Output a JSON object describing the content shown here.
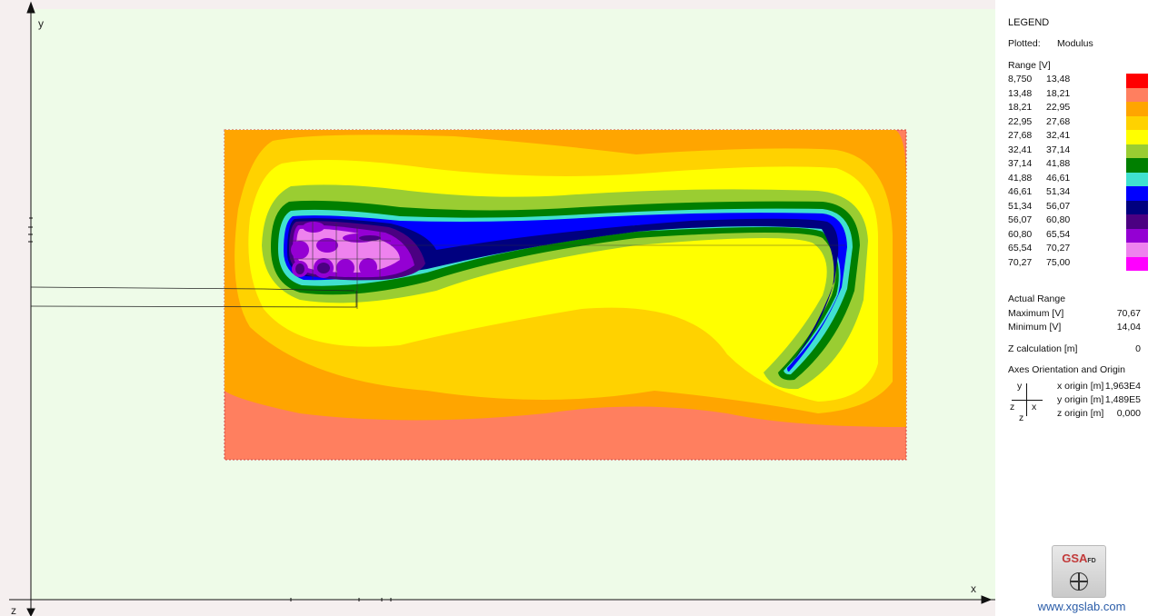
{
  "plot": {
    "axis_y_label": "y",
    "axis_x_label": "x",
    "axis_z_label": "z"
  },
  "legend": {
    "title": "LEGEND",
    "plotted_label": "Plotted:",
    "plotted_value": "Modulus",
    "range_header": "Range [V]",
    "ranges": [
      {
        "lo": "8,750",
        "hi": "13,48",
        "color": "#ff0000"
      },
      {
        "lo": "13,48",
        "hi": "18,21",
        "color": "#ff7f5f"
      },
      {
        "lo": "18,21",
        "hi": "22,95",
        "color": "#ffa500"
      },
      {
        "lo": "22,95",
        "hi": "27,68",
        "color": "#ffd200"
      },
      {
        "lo": "27,68",
        "hi": "32,41",
        "color": "#ffff00"
      },
      {
        "lo": "32,41",
        "hi": "37,14",
        "color": "#9acd32"
      },
      {
        "lo": "37,14",
        "hi": "41,88",
        "color": "#007f00"
      },
      {
        "lo": "41,88",
        "hi": "46,61",
        "color": "#40e0d0"
      },
      {
        "lo": "46,61",
        "hi": "51,34",
        "color": "#0000ff"
      },
      {
        "lo": "51,34",
        "hi": "56,07",
        "color": "#00007f"
      },
      {
        "lo": "56,07",
        "hi": "60,80",
        "color": "#4b0082"
      },
      {
        "lo": "60,80",
        "hi": "65,54",
        "color": "#9400d3"
      },
      {
        "lo": "65,54",
        "hi": "70,27",
        "color": "#ee82ee"
      },
      {
        "lo": "70,27",
        "hi": "75,00",
        "color": "#ff00ff"
      }
    ],
    "actual_range_header": "Actual Range",
    "maximum_label": "Maximum [V]",
    "maximum_value": "70,67",
    "minimum_label": "Minimum [V]",
    "minimum_value": "14,04",
    "zcalc_label": "Z calculation [m]",
    "zcalc_value": "0",
    "axes_header": "Axes Orientation and Origin",
    "axes_y": "y",
    "axes_x": "x",
    "axes_z": "z",
    "axes_z2": "z",
    "x_origin_label": "x origin [m]",
    "x_origin_value": "1,963E4",
    "y_origin_label": "y origin [m]",
    "y_origin_value": "1,489E5",
    "z_origin_label": "z origin [m]",
    "z_origin_value": "0,000"
  },
  "logo": {
    "text": "GSA",
    "sub": "FD"
  },
  "website": "www.xgslab.com"
}
